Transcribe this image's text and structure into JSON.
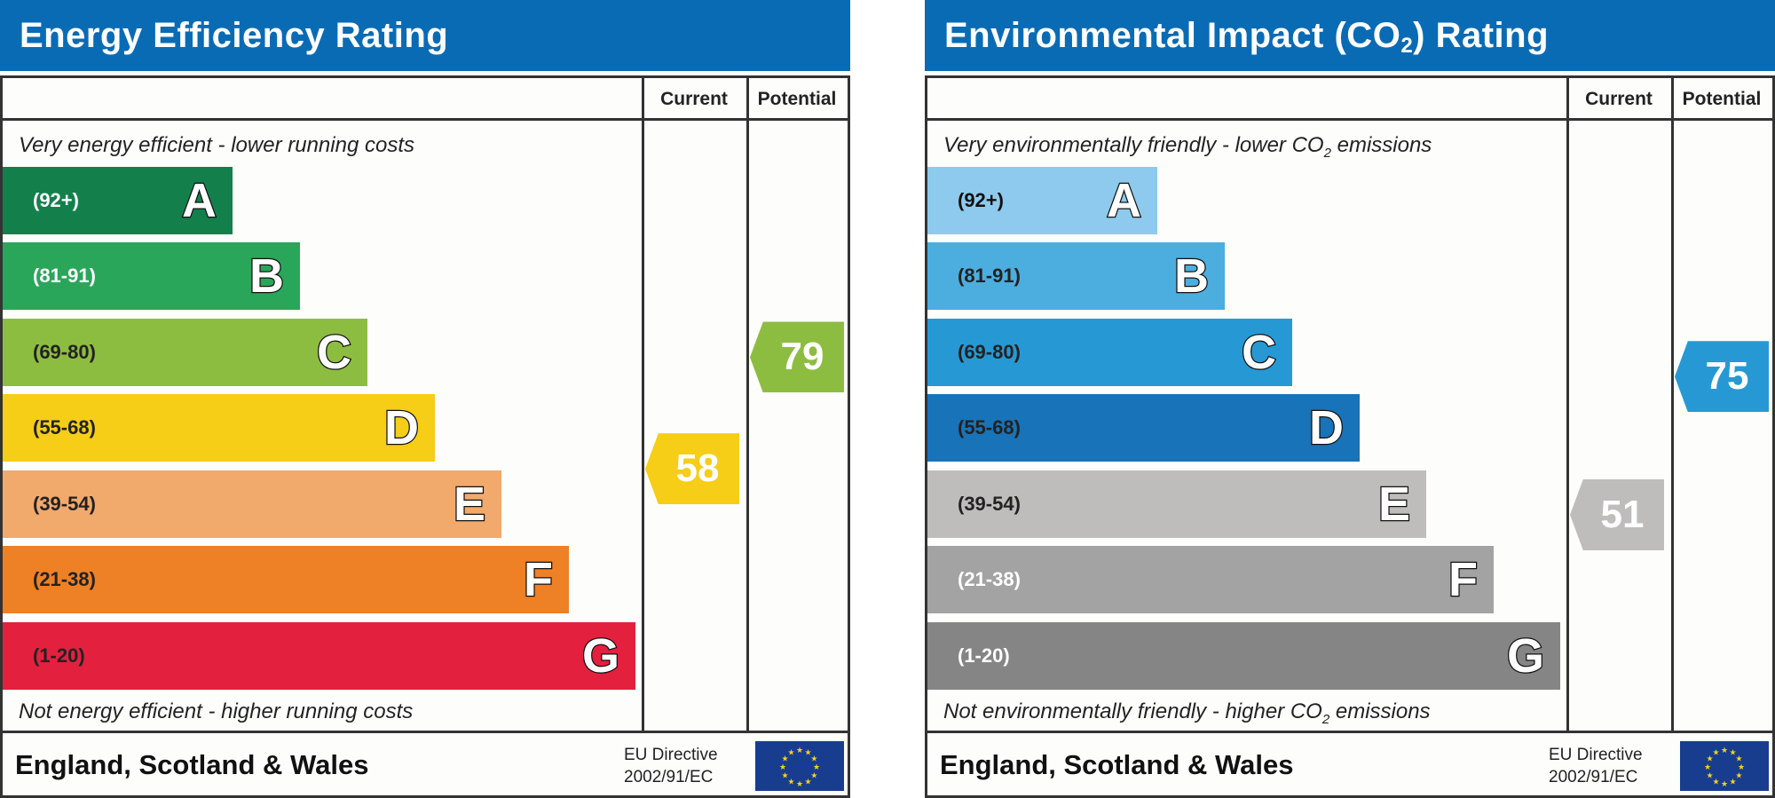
{
  "panels": [
    {
      "id": "energy",
      "title": "Energy Efficiency Rating",
      "title_sub": "",
      "header_current": "Current",
      "header_potential": "Potential",
      "top_text": "Very energy efficient - lower running costs",
      "top_sub": "",
      "top_tail": "",
      "bottom_text": "Not energy efficient - higher running costs",
      "bottom_sub": "",
      "bottom_tail": "",
      "bands": [
        {
          "letter": "A",
          "range": "(92+)",
          "color": "#13804c",
          "text_color": "#ffffff"
        },
        {
          "letter": "B",
          "range": "(81-91)",
          "color": "#2aa65a",
          "text_color": "#ffffff"
        },
        {
          "letter": "C",
          "range": "(69-80)",
          "color": "#8dbd40",
          "text_color": "#222222"
        },
        {
          "letter": "D",
          "range": "(55-68)",
          "color": "#f6cd17",
          "text_color": "#222222"
        },
        {
          "letter": "E",
          "range": "(39-54)",
          "color": "#f2a96c",
          "text_color": "#222222"
        },
        {
          "letter": "F",
          "range": "(21-38)",
          "color": "#ee8025",
          "text_color": "#222222"
        },
        {
          "letter": "G",
          "range": "(1-20)",
          "color": "#e3203e",
          "text_color": "#222222"
        }
      ],
      "current": {
        "value": "58",
        "color": "#f6cd17"
      },
      "potential": {
        "value": "79",
        "color": "#8dbd40"
      },
      "country": "England, Scotland & Wales",
      "directive_line1": "EU Directive",
      "directive_line2": "2002/91/EC"
    },
    {
      "id": "environmental",
      "title": "Environmental Impact (CO",
      "title_sub": "2",
      "title_tail": ") Rating",
      "header_current": "Current",
      "header_potential": "Potential",
      "top_text": "Very environmentally friendly - lower CO",
      "top_sub": "2",
      "top_tail": " emissions",
      "bottom_text": "Not environmentally friendly - higher CO",
      "bottom_sub": "2",
      "bottom_tail": " emissions",
      "bands": [
        {
          "letter": "A",
          "range": "(92+)",
          "color": "#8dcaed",
          "text_color": "#111111"
        },
        {
          "letter": "B",
          "range": "(81-91)",
          "color": "#4caddf",
          "text_color": "#222222"
        },
        {
          "letter": "C",
          "range": "(69-80)",
          "color": "#2699d4",
          "text_color": "#222222"
        },
        {
          "letter": "D",
          "range": "(55-68)",
          "color": "#1873b8",
          "text_color": "#222222"
        },
        {
          "letter": "E",
          "range": "(39-54)",
          "color": "#bebdbb",
          "text_color": "#222222"
        },
        {
          "letter": "F",
          "range": "(21-38)",
          "color": "#a3a3a3",
          "text_color": "#ffffff"
        },
        {
          "letter": "G",
          "range": "(1-20)",
          "color": "#858585",
          "text_color": "#ffffff"
        }
      ],
      "current": {
        "value": "51",
        "color": "#bebdbb"
      },
      "potential": {
        "value": "75",
        "color": "#2699d4"
      },
      "country": "England, Scotland & Wales",
      "directive_line1": "EU Directive",
      "directive_line2": "2002/91/EC"
    }
  ]
}
